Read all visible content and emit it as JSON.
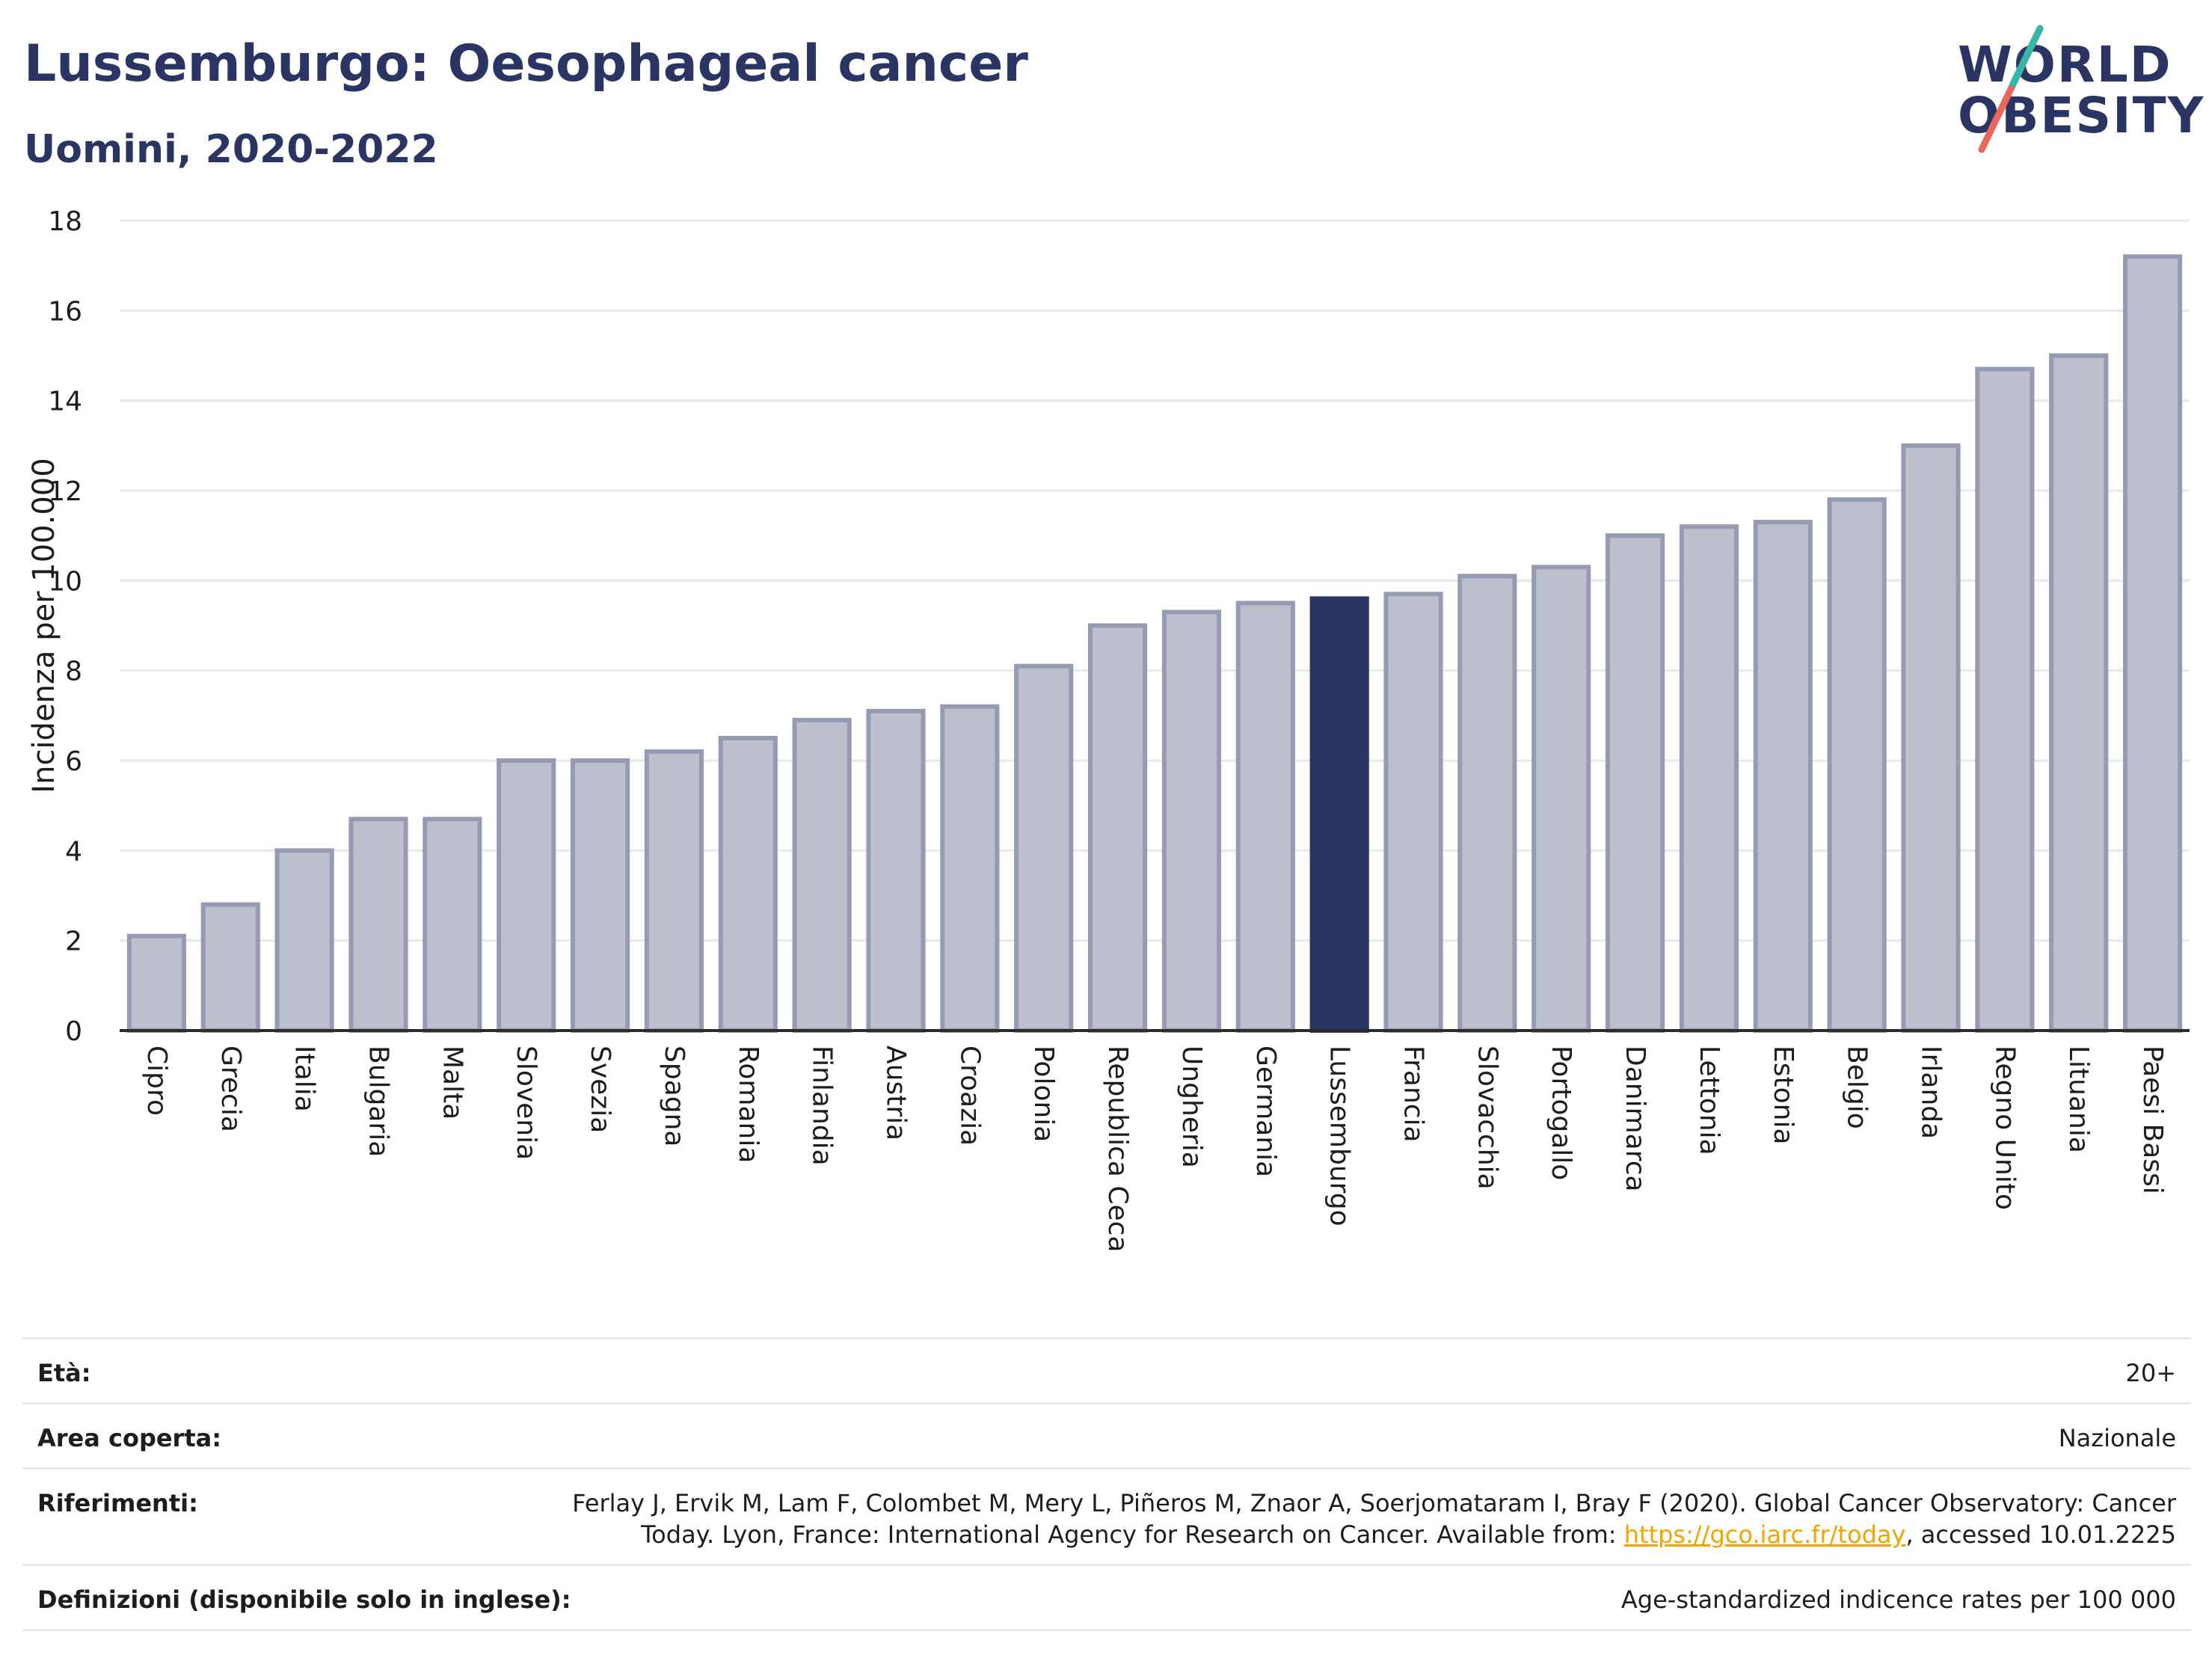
{
  "header": {
    "title": "Lussemburgo: Oesophageal cancer",
    "subtitle": "Uomini, 2020-2022"
  },
  "logo": {
    "line1": "WORLD",
    "line2": "OBESITY"
  },
  "colors": {
    "bar": "#bcc0cd",
    "bar_border": "#959bb3",
    "highlight": "#2b3563",
    "text": "#1d1d1d"
  },
  "chart_data": {
    "type": "bar",
    "categories": [
      "Cipro",
      "Grecia",
      "Italia",
      "Bulgaria",
      "Malta",
      "Slovenia",
      "Svezia",
      "Spagna",
      "Romania",
      "Finlandia",
      "Austria",
      "Croazia",
      "Polonia",
      "Republica Ceca",
      "Ungheria",
      "Germania",
      "Lussemburgo",
      "Francia",
      "Slovacchia",
      "Portogallo",
      "Danimarca",
      "Lettonia",
      "Estonia",
      "Belgio",
      "Irlanda",
      "Regno Unito",
      "Lituania",
      "Paesi Bassi"
    ],
    "values": [
      2.1,
      2.8,
      4.0,
      4.7,
      4.7,
      6.0,
      6.0,
      6.2,
      6.5,
      6.9,
      7.1,
      7.2,
      8.1,
      9.0,
      9.3,
      9.5,
      9.6,
      9.7,
      10.1,
      10.3,
      11.0,
      11.2,
      11.3,
      11.8,
      13.0,
      14.7,
      15.0,
      17.2
    ],
    "highlight": "Lussemburgo",
    "ylabel": "Incidenza per 100.000",
    "xlabel": "",
    "ylim": [
      0,
      18
    ],
    "yticks": [
      0,
      2,
      4,
      6,
      8,
      10,
      12,
      14,
      16,
      18
    ],
    "grid": true
  },
  "meta": {
    "age_label": "Età:",
    "age_value": "20+",
    "area_label": "Area coperta:",
    "area_value": "Nazionale",
    "refs_label": "Riferimenti:",
    "refs_value_1": "Ferlay J, Ervik M, Lam F, Colombet M, Mery L, Piñeros M, Znaor A, Soerjomataram I, Bray F (2020). Global Cancer Observatory: Cancer Today. Lyon, France: International Agency for Research on Cancer. Available from: ",
    "refs_link": "https://gco.iarc.fr/today",
    "refs_value_2": ", accessed 10.01.2225",
    "defs_label": "Definizioni (disponibile solo in inglese):",
    "defs_value": "Age-standardized indicence rates per 100 000"
  }
}
